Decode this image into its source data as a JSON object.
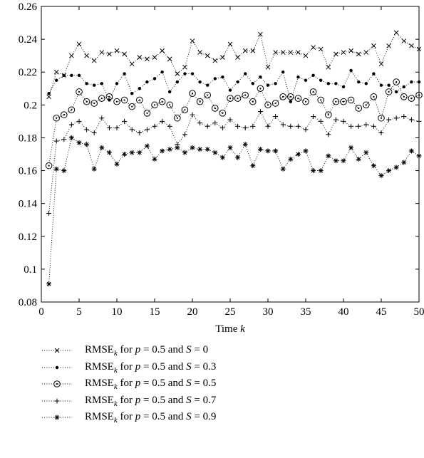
{
  "chart_data": {
    "type": "scatter",
    "xlabel": "Time",
    "xlabel_var": "k",
    "x": [
      1,
      2,
      3,
      4,
      5,
      6,
      7,
      8,
      9,
      10,
      11,
      12,
      13,
      14,
      15,
      16,
      17,
      18,
      19,
      20,
      21,
      22,
      23,
      24,
      25,
      26,
      27,
      28,
      29,
      30,
      31,
      32,
      33,
      34,
      35,
      36,
      37,
      38,
      39,
      40,
      41,
      42,
      43,
      44,
      45,
      46,
      47,
      48,
      49,
      50
    ],
    "xlim": [
      0,
      50
    ],
    "ylim": [
      0.08,
      0.26
    ],
    "xticks": [
      0,
      5,
      10,
      15,
      20,
      25,
      30,
      35,
      40,
      45,
      50
    ],
    "yticks": [
      0.08,
      0.1,
      0.12,
      0.14,
      0.16,
      0.18,
      0.2,
      0.22,
      0.24,
      0.26
    ],
    "xtick_labels": [
      "0",
      "5",
      "10",
      "15",
      "20",
      "25",
      "30",
      "35",
      "40",
      "45",
      "50"
    ],
    "ytick_labels": [
      "0.08",
      "0.1",
      "0.12",
      "0.14",
      "0.16",
      "0.18",
      "0.2",
      "0.22",
      "0.24",
      "0.26"
    ],
    "grid": false,
    "line_style": "dotted",
    "legend_position": "below",
    "series": [
      {
        "marker": "x",
        "legend_p": "0.5",
        "legend_s": "0",
        "values": [
          0.205,
          0.22,
          0.218,
          0.23,
          0.237,
          0.23,
          0.227,
          0.232,
          0.231,
          0.233,
          0.231,
          0.225,
          0.229,
          0.228,
          0.229,
          0.233,
          0.228,
          0.219,
          0.223,
          0.239,
          0.232,
          0.23,
          0.227,
          0.229,
          0.237,
          0.229,
          0.233,
          0.233,
          0.243,
          0.223,
          0.232,
          0.232,
          0.232,
          0.232,
          0.23,
          0.235,
          0.234,
          0.223,
          0.231,
          0.232,
          0.233,
          0.231,
          0.232,
          0.236,
          0.225,
          0.236,
          0.244,
          0.239,
          0.236,
          0.234
        ]
      },
      {
        "marker": "dot",
        "legend_p": "0.5",
        "legend_s": "0.3",
        "values": [
          0.207,
          0.215,
          0.218,
          0.218,
          0.218,
          0.213,
          0.212,
          0.213,
          0.203,
          0.213,
          0.219,
          0.207,
          0.21,
          0.214,
          0.216,
          0.22,
          0.208,
          0.214,
          0.219,
          0.219,
          0.214,
          0.212,
          0.216,
          0.217,
          0.209,
          0.214,
          0.219,
          0.213,
          0.217,
          0.212,
          0.213,
          0.22,
          0.202,
          0.217,
          0.215,
          0.218,
          0.215,
          0.213,
          0.213,
          0.211,
          0.221,
          0.214,
          0.213,
          0.219,
          0.212,
          0.212,
          0.208,
          0.211,
          0.214,
          0.214
        ]
      },
      {
        "marker": "circle",
        "legend_p": "0.5",
        "legend_s": "0.5",
        "values": [
          0.163,
          0.192,
          0.194,
          0.197,
          0.208,
          0.202,
          0.201,
          0.204,
          0.205,
          0.202,
          0.203,
          0.199,
          0.203,
          0.195,
          0.2,
          0.202,
          0.2,
          0.192,
          0.197,
          0.207,
          0.202,
          0.206,
          0.198,
          0.195,
          0.204,
          0.204,
          0.206,
          0.202,
          0.21,
          0.2,
          0.201,
          0.205,
          0.205,
          0.204,
          0.202,
          0.208,
          0.203,
          0.194,
          0.202,
          0.202,
          0.203,
          0.198,
          0.2,
          0.205,
          0.192,
          0.208,
          0.214,
          0.205,
          0.204,
          0.206
        ]
      },
      {
        "marker": "plus",
        "legend_p": "0.5",
        "legend_s": "0.7",
        "values": [
          0.134,
          0.178,
          0.179,
          0.188,
          0.19,
          0.185,
          0.183,
          0.192,
          0.186,
          0.186,
          0.19,
          0.185,
          0.183,
          0.185,
          0.187,
          0.19,
          0.187,
          0.176,
          0.182,
          0.194,
          0.189,
          0.187,
          0.189,
          0.186,
          0.191,
          0.187,
          0.186,
          0.187,
          0.196,
          0.187,
          0.193,
          0.188,
          0.187,
          0.187,
          0.185,
          0.193,
          0.19,
          0.182,
          0.191,
          0.19,
          0.187,
          0.187,
          0.188,
          0.187,
          0.183,
          0.191,
          0.192,
          0.193,
          0.191,
          0.19
        ]
      },
      {
        "marker": "star",
        "legend_p": "0.5",
        "legend_s": "0.9",
        "values": [
          0.091,
          0.161,
          0.16,
          0.18,
          0.177,
          0.176,
          0.161,
          0.174,
          0.171,
          0.164,
          0.17,
          0.171,
          0.171,
          0.175,
          0.167,
          0.172,
          0.173,
          0.174,
          0.171,
          0.174,
          0.173,
          0.173,
          0.171,
          0.168,
          0.174,
          0.168,
          0.176,
          0.163,
          0.173,
          0.172,
          0.172,
          0.161,
          0.167,
          0.17,
          0.172,
          0.16,
          0.16,
          0.169,
          0.166,
          0.166,
          0.174,
          0.167,
          0.171,
          0.163,
          0.157,
          0.16,
          0.162,
          0.165,
          0.172,
          0.169
        ]
      }
    ]
  },
  "legend": {
    "label_prefix": "RMSE",
    "label_subscript": "k",
    "label_for": " for ",
    "p_symbol": "p",
    "equals": " = ",
    "and_word": " and ",
    "s_symbol": "S"
  }
}
